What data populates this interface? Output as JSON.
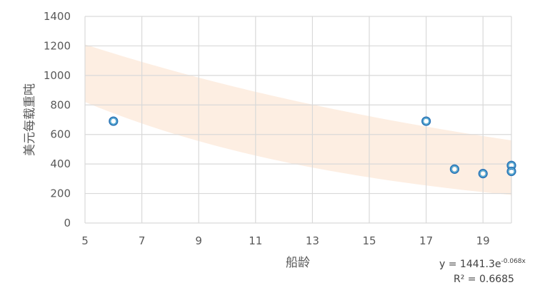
{
  "chart_data": {
    "type": "scatter",
    "xlabel": "船龄",
    "ylabel": "美元每载重吨",
    "xlim": [
      5,
      20
    ],
    "ylim": [
      0,
      1400
    ],
    "x_ticks": [
      5,
      7,
      9,
      11,
      13,
      15,
      17,
      19
    ],
    "y_ticks": [
      0,
      200,
      400,
      600,
      800,
      1000,
      1200,
      1400
    ],
    "grid": true,
    "legend": "none",
    "points": [
      {
        "x": 6,
        "y": 690
      },
      {
        "x": 17,
        "y": 690
      },
      {
        "x": 18,
        "y": 365
      },
      {
        "x": 19,
        "y": 335
      },
      {
        "x": 20,
        "y": 390
      },
      {
        "x": 20,
        "y": 350
      }
    ],
    "trendline": {
      "type": "exponential",
      "a": 1441.3,
      "b": -0.068,
      "band_upper_at_x5": 1210,
      "band_lower_at_x5": 820,
      "band_upper_at_x20": 560,
      "band_lower_at_x20": 190,
      "equation_label_prefix": "y = 1441.3e",
      "equation_label_exponent": "-0.068x",
      "r2_label": "R² = 0.6685"
    },
    "colors": {
      "band": "#fdeee2",
      "marker_outer": "#2e75b6",
      "marker_inner_stroke": "#5bb2d6",
      "grid": "#d9d9d9",
      "text": "#595959"
    }
  }
}
